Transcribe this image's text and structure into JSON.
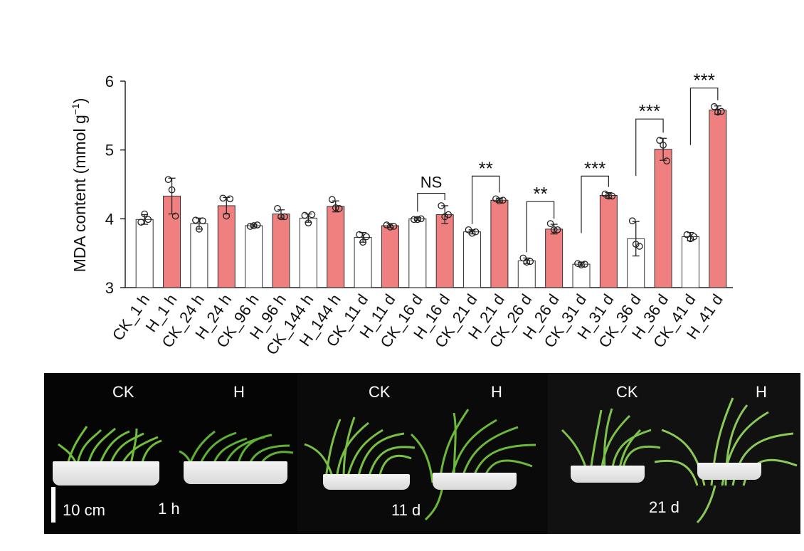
{
  "chart_data": {
    "type": "bar",
    "ylabel": "MDA content (mmol g",
    "ylabel_sup": "−1",
    "ylabel_end": ")",
    "ylim": [
      3,
      6
    ],
    "yticks": [
      "3",
      "4",
      "5",
      "6"
    ],
    "categories": [
      "CK_1 h",
      "H_1 h",
      "CK_24 h",
      "H_24 h",
      "CK_96 h",
      "H_96 h",
      "CK_144 h",
      "H_144 h",
      "CK_11 d",
      "H_11 d",
      "CK_16 d",
      "H_16 d",
      "CK_21 d",
      "H_21 d",
      "CK_26 d",
      "H_26 d",
      "CK_31 d",
      "H_31 d",
      "CK_36 d",
      "H_36 d",
      "CK_41 d",
      "H_41 d"
    ],
    "values": [
      3.99,
      4.33,
      3.93,
      4.19,
      3.9,
      4.07,
      4.01,
      4.18,
      3.73,
      3.9,
      4.0,
      4.06,
      3.81,
      4.27,
      3.39,
      3.85,
      3.34,
      4.34,
      3.71,
      5.01,
      3.74,
      5.58
    ],
    "errors": [
      0.07,
      0.26,
      0.08,
      0.12,
      0.02,
      0.06,
      0.06,
      0.08,
      0.07,
      0.03,
      0.02,
      0.13,
      0.03,
      0.03,
      0.04,
      0.07,
      0.03,
      0.04,
      0.25,
      0.16,
      0.06,
      0.06
    ],
    "points": [
      [
        3.95,
        4.07,
        3.99
      ],
      [
        4.57,
        4.42,
        4.04
      ],
      [
        3.98,
        3.85,
        3.97
      ],
      [
        4.3,
        4.04,
        4.29
      ],
      [
        3.89,
        3.9,
        3.91
      ],
      [
        4.15,
        4.03,
        4.03
      ],
      [
        4.05,
        3.94,
        4.06
      ],
      [
        4.28,
        4.16,
        4.15
      ],
      [
        3.77,
        3.66,
        3.74
      ],
      [
        3.91,
        3.88,
        3.89
      ],
      [
        3.99,
        3.99,
        4.0
      ],
      [
        4.19,
        4.03,
        4.06
      ],
      [
        3.84,
        3.79,
        3.81
      ],
      [
        4.29,
        4.26,
        4.27
      ],
      [
        3.43,
        3.37,
        3.38
      ],
      [
        3.93,
        3.84,
        3.84
      ],
      [
        3.35,
        3.33,
        3.34
      ],
      [
        4.36,
        4.33,
        4.33
      ],
      [
        3.97,
        3.63,
        3.6
      ],
      [
        5.14,
        5.07,
        4.84
      ],
      [
        3.77,
        3.71,
        3.74
      ],
      [
        5.63,
        5.55,
        5.56
      ]
    ],
    "series_colors": {
      "CK": "#ffffff",
      "H": "#f08080"
    },
    "significance": [
      {
        "pair": [
          10,
          11
        ],
        "label": "NS",
        "y": 4.37
      },
      {
        "pair": [
          12,
          13
        ],
        "label": "**",
        "y": 4.62
      },
      {
        "pair": [
          14,
          15
        ],
        "label": "**",
        "y": 4.25
      },
      {
        "pair": [
          16,
          17
        ],
        "label": "***",
        "y": 4.62
      },
      {
        "pair": [
          18,
          19
        ],
        "label": "***",
        "y": 5.45
      },
      {
        "pair": [
          20,
          21
        ],
        "label": "***",
        "y": 5.9
      }
    ]
  },
  "photos": {
    "scale_label": "10 cm",
    "panels": [
      {
        "ck_label": "CK",
        "h_label": "H",
        "time": "1 h"
      },
      {
        "ck_label": "CK",
        "h_label": "H",
        "time": "11 d"
      },
      {
        "ck_label": "CK",
        "h_label": "H",
        "time": "21 d"
      }
    ]
  }
}
